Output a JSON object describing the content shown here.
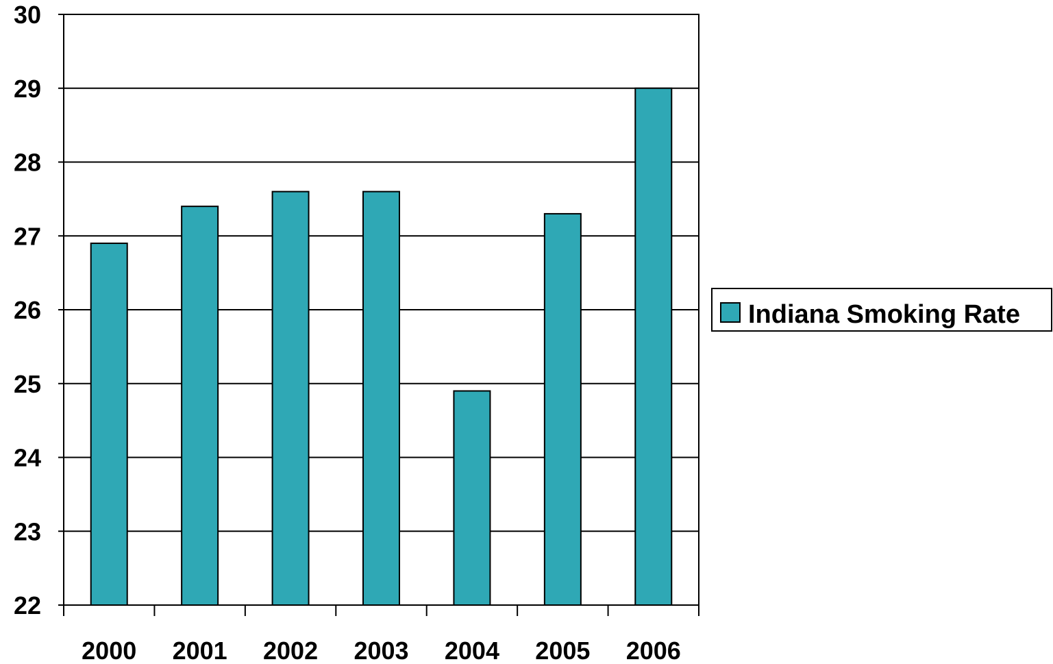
{
  "chart_data": {
    "type": "bar",
    "categories": [
      "2000",
      "2001",
      "2002",
      "2003",
      "2004",
      "2005",
      "2006"
    ],
    "series": [
      {
        "name": "Indiana Smoking Rate",
        "values": [
          26.9,
          27.4,
          27.6,
          27.6,
          24.9,
          27.3,
          29.0
        ],
        "color": "#2fa8b5"
      }
    ],
    "title": "",
    "xlabel": "",
    "ylabel": "",
    "ylim": [
      22,
      30
    ],
    "yticks": [
      "22",
      "23",
      "24",
      "25",
      "26",
      "27",
      "28",
      "29",
      "30"
    ],
    "grid": true,
    "legend_position": "right"
  }
}
